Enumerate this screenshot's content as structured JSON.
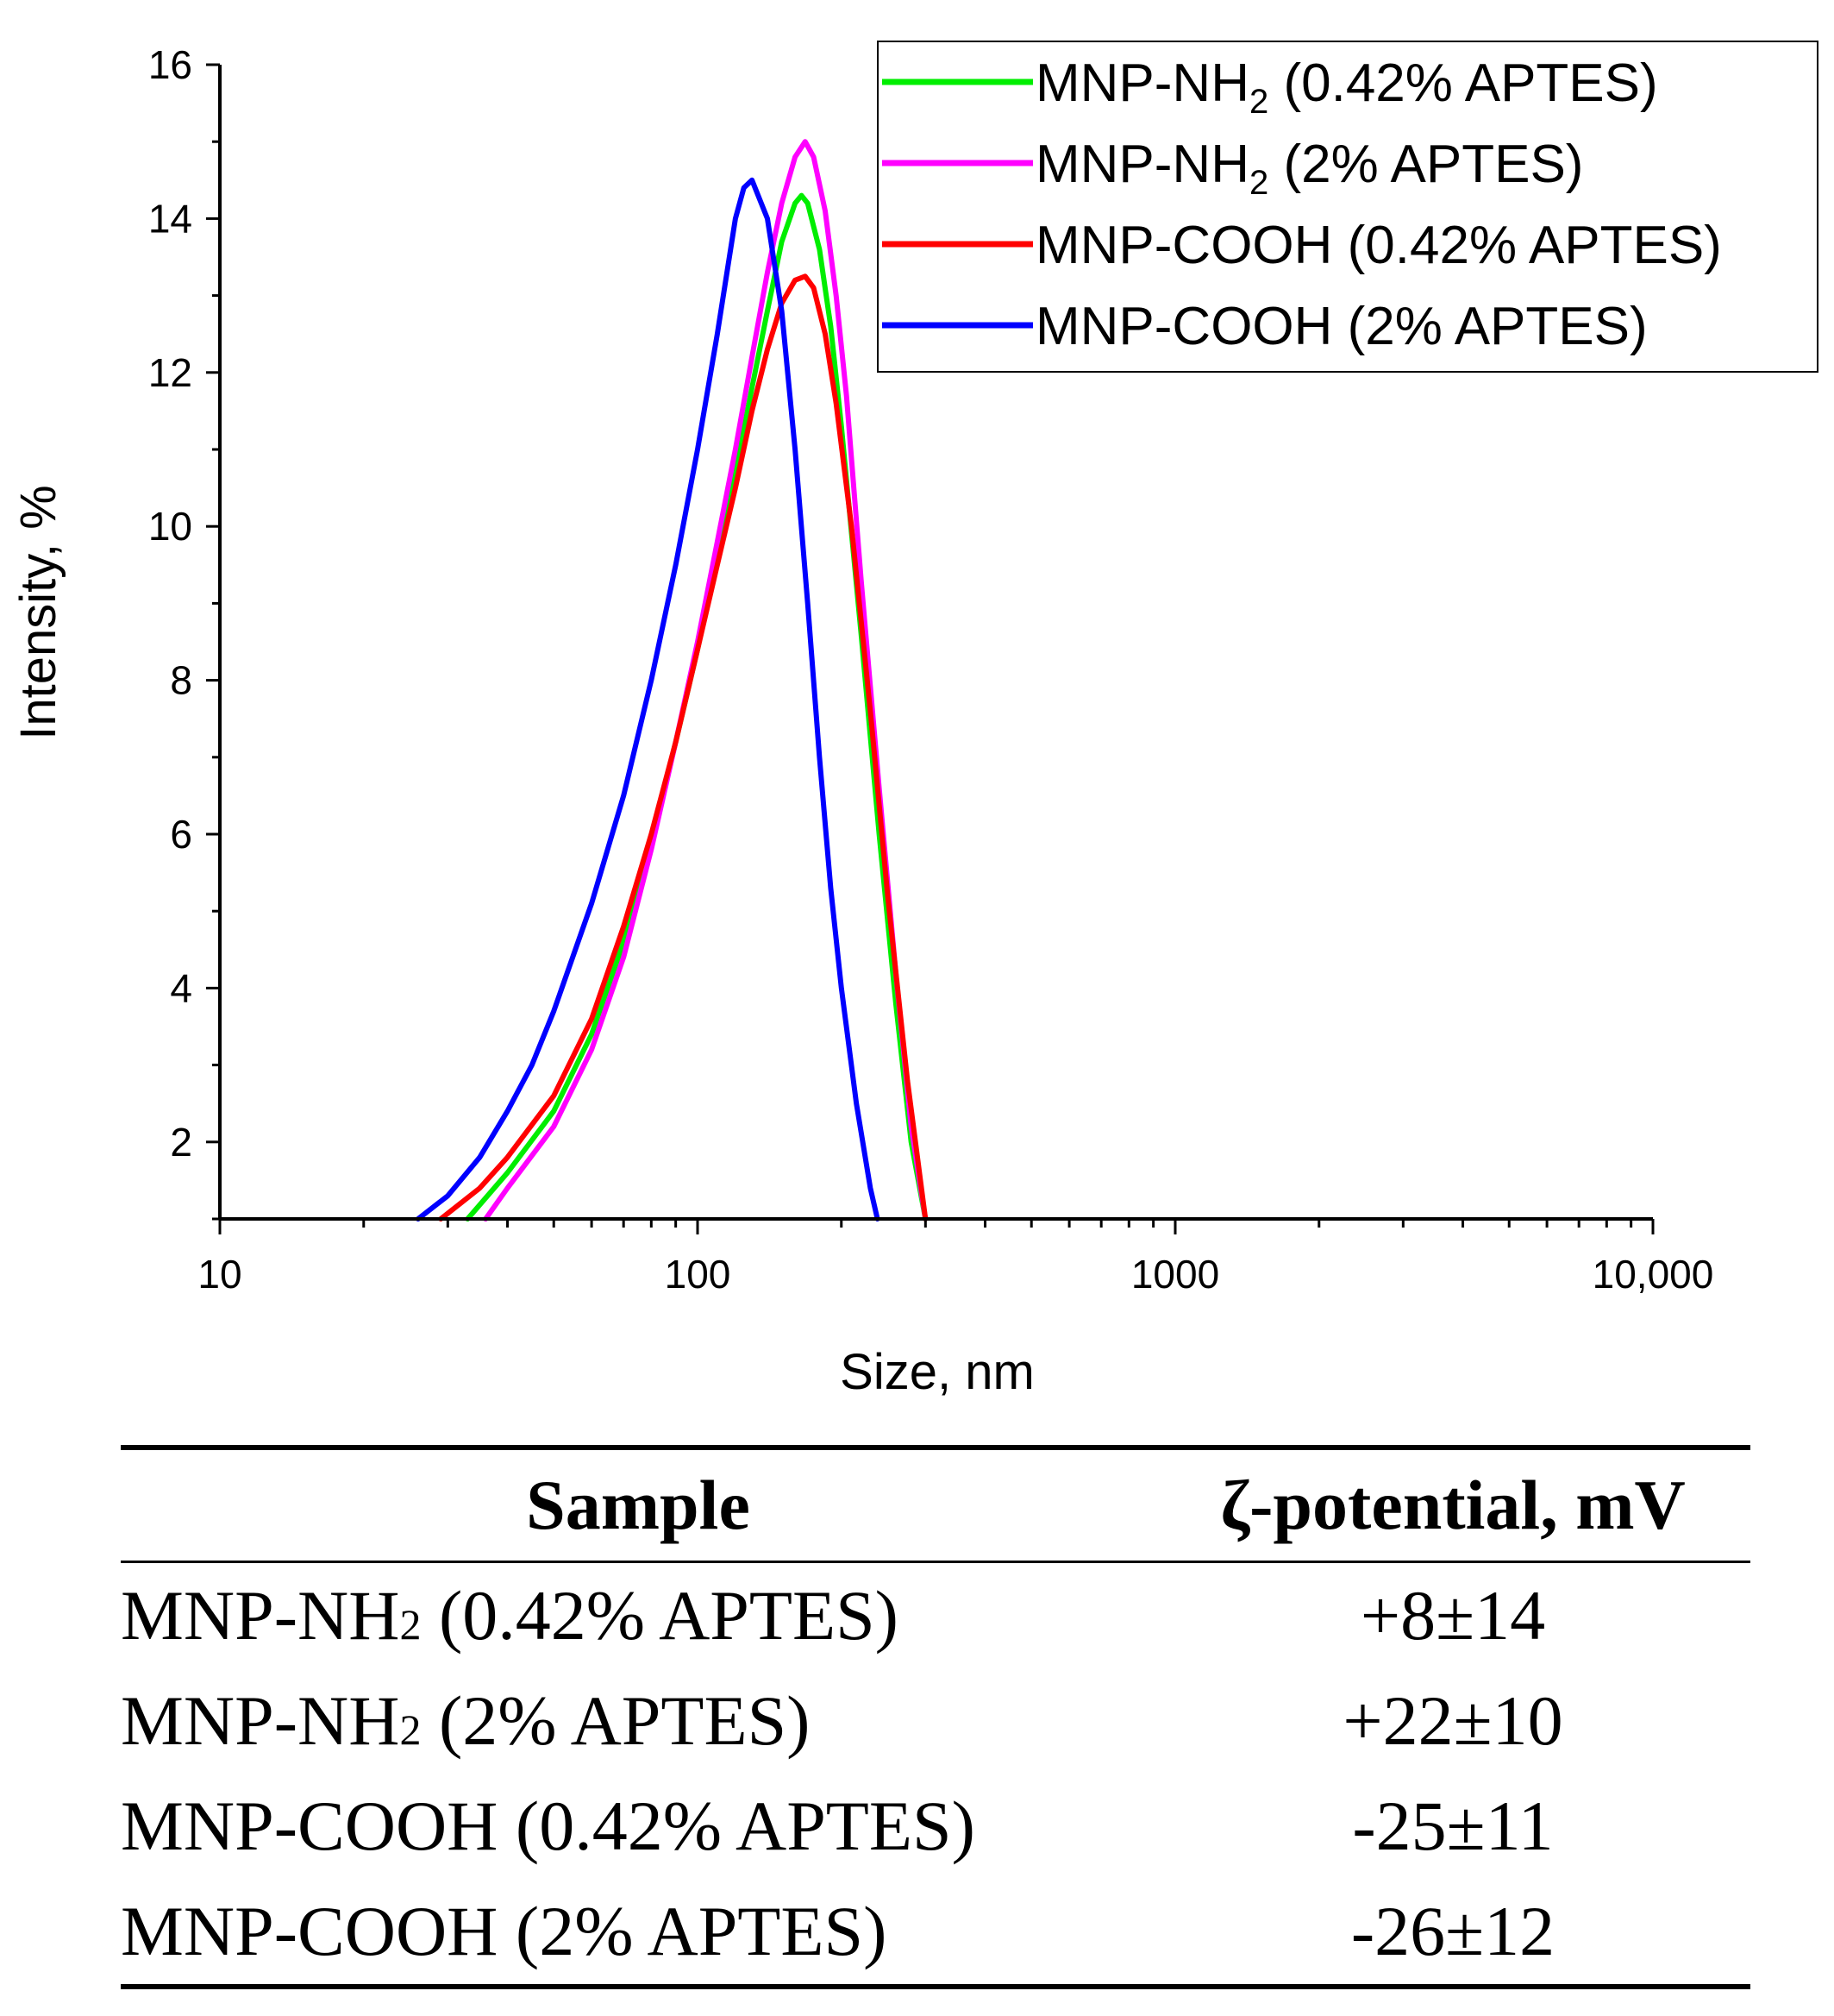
{
  "chart_data": {
    "type": "line",
    "xscale": "log",
    "xlabel": "Size, nm",
    "ylabel": "Intensity, %",
    "xlim": [
      10,
      10000
    ],
    "ylim": [
      1,
      16
    ],
    "x_ticks": [
      10,
      100,
      1000,
      10000
    ],
    "x_tick_labels": [
      "10",
      "100",
      "1000",
      "10,000"
    ],
    "y_ticks": [
      2,
      4,
      6,
      8,
      10,
      12,
      14,
      16
    ],
    "y_tick_labels": [
      "2",
      "4",
      "6",
      "8",
      "10",
      "12",
      "14",
      "16"
    ],
    "legend_position": "top-right",
    "series": [
      {
        "name": "MNP-NH2 (0.42% APTES)",
        "legend_main": "MNP-NH",
        "legend_sub": "2",
        "legend_tail": " (0.42% APTES)",
        "color": "#00ee00",
        "x": [
          33,
          40,
          50,
          60,
          70,
          80,
          90,
          100,
          110,
          120,
          130,
          140,
          150,
          160,
          165,
          170,
          180,
          190,
          200,
          220,
          240,
          260,
          280,
          300
        ],
        "y": [
          1.0,
          1.6,
          2.4,
          3.4,
          4.6,
          5.9,
          7.2,
          8.4,
          9.6,
          10.7,
          11.8,
          12.8,
          13.7,
          14.2,
          14.3,
          14.2,
          13.6,
          12.6,
          11.3,
          8.6,
          6.0,
          3.8,
          2.0,
          1.0
        ]
      },
      {
        "name": "MNP-NH2 (2% APTES)",
        "legend_main": "MNP-NH",
        "legend_sub": "2",
        "legend_tail": " (2% APTES)",
        "color": "#ff00ff",
        "x": [
          36,
          40,
          50,
          60,
          70,
          80,
          90,
          100,
          110,
          120,
          130,
          140,
          150,
          160,
          168,
          175,
          185,
          195,
          205,
          220,
          240,
          260,
          280,
          300
        ],
        "y": [
          1.0,
          1.4,
          2.2,
          3.2,
          4.4,
          5.8,
          7.2,
          8.5,
          9.8,
          11.0,
          12.2,
          13.3,
          14.2,
          14.8,
          15.0,
          14.8,
          14.1,
          13.0,
          11.7,
          9.3,
          6.6,
          4.2,
          2.2,
          1.0
        ]
      },
      {
        "name": "MNP-COOH (0.42% APTES)",
        "legend_main": "MNP-COOH (0.42% APTES)",
        "legend_sub": "",
        "legend_tail": "",
        "color": "#ff0000",
        "x": [
          29,
          35,
          40,
          50,
          60,
          70,
          80,
          90,
          100,
          110,
          120,
          130,
          140,
          150,
          160,
          168,
          175,
          185,
          195,
          210,
          230,
          250,
          275,
          300
        ],
        "y": [
          1.0,
          1.4,
          1.8,
          2.6,
          3.6,
          4.8,
          6.0,
          7.2,
          8.4,
          9.5,
          10.5,
          11.5,
          12.3,
          12.9,
          13.2,
          13.25,
          13.1,
          12.5,
          11.6,
          10.0,
          7.6,
          5.2,
          2.8,
          1.0
        ]
      },
      {
        "name": "MNP-COOH (2% APTES)",
        "legend_main": "MNP-COOH (2% APTES)",
        "legend_sub": "",
        "legend_tail": "",
        "color": "#0000ff",
        "x": [
          26,
          30,
          35,
          40,
          45,
          50,
          60,
          70,
          80,
          90,
          100,
          110,
          120,
          125,
          130,
          140,
          150,
          160,
          170,
          180,
          190,
          200,
          215,
          230,
          238
        ],
        "y": [
          1.0,
          1.3,
          1.8,
          2.4,
          3.0,
          3.7,
          5.1,
          6.5,
          8.0,
          9.5,
          11.0,
          12.5,
          14.0,
          14.4,
          14.5,
          14.0,
          12.8,
          11.0,
          9.0,
          7.0,
          5.3,
          4.0,
          2.5,
          1.4,
          1.0
        ]
      }
    ]
  },
  "table": {
    "header_sample": "Sample",
    "header_zeta": "ζ-potential, mV",
    "rows": [
      {
        "main": "MNP-NH",
        "sub": "2",
        "tail": " (0.42% APTES)",
        "value": "+8±14"
      },
      {
        "main": "MNP-NH",
        "sub": "2",
        "tail": " (2% APTES)",
        "value": "+22±10"
      },
      {
        "main": "MNP-COOH (0.42% APTES)",
        "sub": "",
        "tail": "",
        "value": "-25±11"
      },
      {
        "main": "MNP-COOH (2% APTES)",
        "sub": "",
        "tail": "",
        "value": "-26±12"
      }
    ]
  }
}
